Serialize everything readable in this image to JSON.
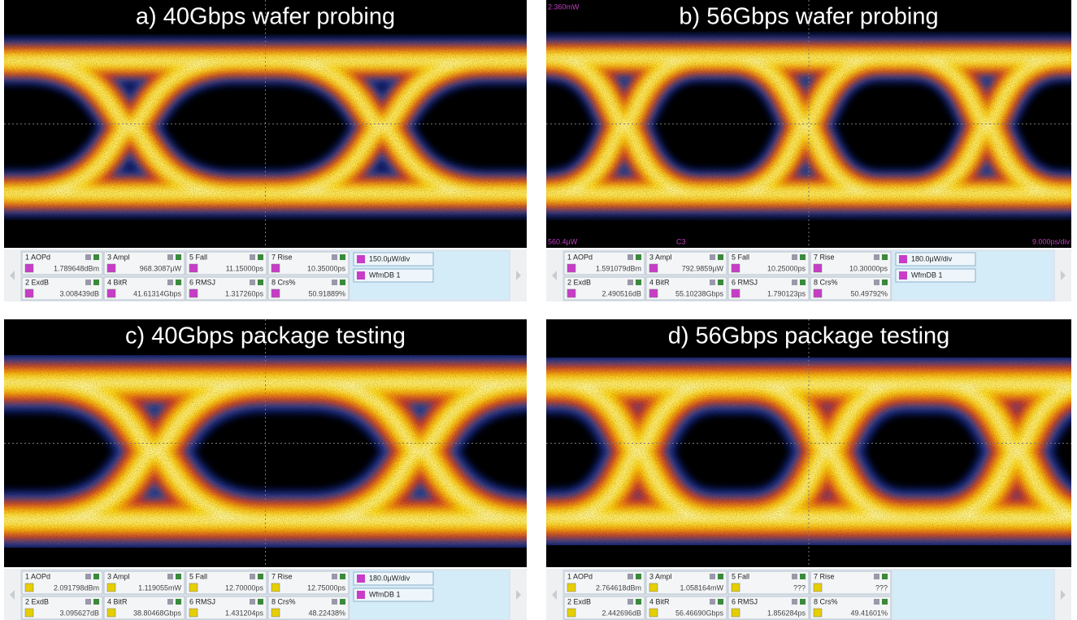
{
  "panels": [
    {
      "title": "a) 40Gbps wafer probing",
      "icon_color": "#c83cc8",
      "measurements": [
        {
          "label": "1 AOPd",
          "value": "1.789648dBm"
        },
        {
          "label": "3 Ampl",
          "value": "968.3087µW"
        },
        {
          "label": "5 Fall",
          "value": "11.15000ps"
        },
        {
          "label": "7 Rise",
          "value": "10.35000ps"
        },
        {
          "label": "2 ExdB",
          "value": "3.008439dB"
        },
        {
          "label": "4 BitR",
          "value": "41.61314Gbps"
        },
        {
          "label": "6 RMSJ",
          "value": "1.317260ps"
        },
        {
          "label": "8 Crs%",
          "value": "50.91889%"
        }
      ],
      "scale": "150.0µW/div",
      "waveform_label": "WfmDB 1"
    },
    {
      "title": "b) 56Gbps wafer probing",
      "icon_color": "#c83cc8",
      "axis_labels": {
        "top_left": "2.360mW",
        "bottom_left": "560.4µW",
        "channel": "C3",
        "bottom_right": "9.000ps/div"
      },
      "measurements": [
        {
          "label": "1 AOPd",
          "value": "1.591079dBm"
        },
        {
          "label": "3 Ampl",
          "value": "792.9859µW"
        },
        {
          "label": "5 Fall",
          "value": "10.25000ps"
        },
        {
          "label": "7 Rise",
          "value": "10.30000ps"
        },
        {
          "label": "2 ExdB",
          "value": "2.490516dB"
        },
        {
          "label": "4 BitR",
          "value": "55.10238Gbps"
        },
        {
          "label": "6 RMSJ",
          "value": "1.790123ps"
        },
        {
          "label": "8 Crs%",
          "value": "50.49792%"
        }
      ],
      "scale": "180.0µW/div",
      "waveform_label": "WfmDB 1"
    },
    {
      "title": "c) 40Gbps package testing",
      "icon_color": "#e6cf00",
      "measurements": [
        {
          "label": "1 AOPd",
          "value": "2.091798dBm"
        },
        {
          "label": "3 Ampl",
          "value": "1.119055mW"
        },
        {
          "label": "5 Fall",
          "value": "12.70000ps"
        },
        {
          "label": "7 Rise",
          "value": "12.75000ps"
        },
        {
          "label": "2 ExdB",
          "value": "3.095627dB"
        },
        {
          "label": "4 BitR",
          "value": "38.80468Gbps"
        },
        {
          "label": "6 RMSJ",
          "value": "1.431204ps"
        },
        {
          "label": "8 Crs%",
          "value": "48.22438%"
        }
      ],
      "scale": "180.0µW/div",
      "waveform_label": "WfmDB 1"
    },
    {
      "title": "d) 56Gbps package testing",
      "icon_color": "#e6cf00",
      "measurements": [
        {
          "label": "1 AOPd",
          "value": "2.764618dBm"
        },
        {
          "label": "3 Ampl",
          "value": "1.058164mW"
        },
        {
          "label": "5 Fall",
          "value": "???"
        },
        {
          "label": "7 Rise",
          "value": "???"
        },
        {
          "label": "2 ExdB",
          "value": "2.442696dB"
        },
        {
          "label": "4 BitR",
          "value": "56.46690Gbps"
        },
        {
          "label": "6 RMSJ",
          "value": "1.856284ps"
        },
        {
          "label": "8 Crs%",
          "value": "49.41601%"
        }
      ]
    }
  ]
}
